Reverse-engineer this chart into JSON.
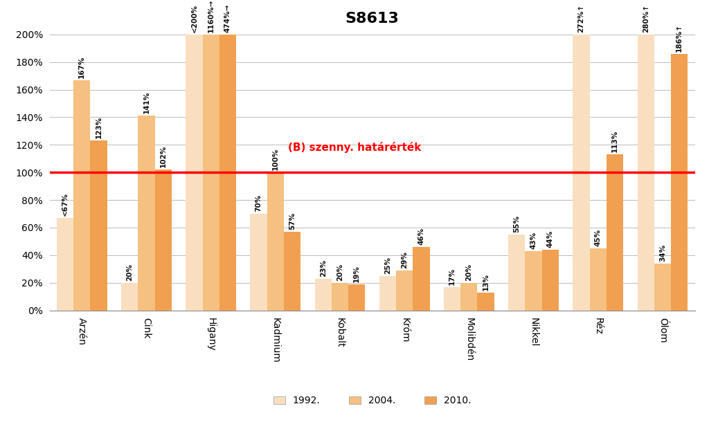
{
  "title": "S8613",
  "categories": [
    "Arzén",
    "Cink",
    "Higany",
    "Kadmium",
    "Kobalt",
    "Króm",
    "Molibdén",
    "Nikkel",
    "Réz",
    "Ólom"
  ],
  "bar_labels": {
    "1992.": [
      "<67%",
      "20%",
      "<200%",
      "70%",
      "23%",
      "25%",
      "17%",
      "55%",
      "272%↑",
      "280%↑"
    ],
    "2004.": [
      "167%",
      "141%",
      "1160%→",
      "100%",
      "20%",
      "29%",
      "20%",
      "43%",
      "45%",
      "34%"
    ],
    "2010.": [
      "123%",
      "102%",
      "474%→",
      "57%",
      "19%",
      "46%",
      "13%",
      "44%",
      "113%",
      "186%↑"
    ]
  },
  "actual_values": {
    "1992.": [
      67,
      20,
      200,
      70,
      23,
      25,
      17,
      55,
      200,
      200
    ],
    "2004.": [
      167,
      141,
      200,
      100,
      20,
      29,
      20,
      43,
      45,
      34
    ],
    "2010.": [
      123,
      102,
      200,
      57,
      19,
      46,
      13,
      44,
      113,
      186
    ]
  },
  "colors": {
    "1992.": "#F9DFC0",
    "2004.": "#F5C080",
    "2010.": "#F0A050"
  },
  "reference_line": 100,
  "reference_label": "(B) szenny. határérték",
  "reference_color": "#FF0000",
  "ylim": [
    0,
    200
  ],
  "background_color": "#FFFFFF",
  "grid_color": "#BBBBBB",
  "bar_width": 0.26,
  "legend_labels": [
    "1992.",
    "2004.",
    "2010."
  ]
}
